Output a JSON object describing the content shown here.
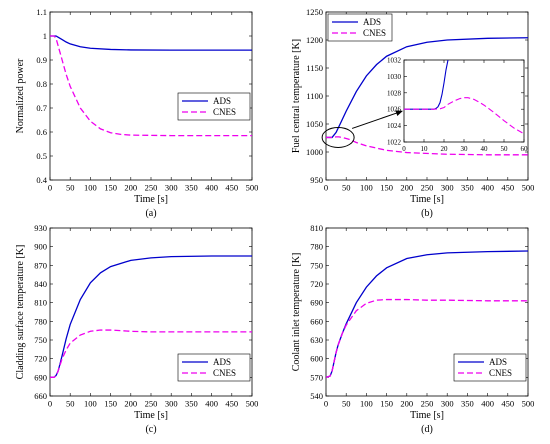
{
  "colors": {
    "ads": "#0000cc",
    "cnes": "#ee00ee"
  },
  "chart_data": [
    {
      "type": "line",
      "caption": "(a)",
      "xlabel": "Time [s]",
      "ylabel": "Normalized power",
      "xlim": [
        0,
        500
      ],
      "ylim": [
        0.4,
        1.1
      ],
      "xticks": [
        0,
        50,
        100,
        150,
        200,
        250,
        300,
        350,
        400,
        450,
        500
      ],
      "yticks": [
        0.4,
        0.5,
        0.6,
        0.7,
        0.8,
        0.9,
        1,
        1.1
      ],
      "ytick_labels": [
        "0.4",
        "0.5",
        "0.6",
        "0.7",
        "0.8",
        "0.9",
        "1",
        "1.1"
      ],
      "legend_position": "middle-right",
      "series": [
        {
          "name": "ADS",
          "style": "solid",
          "x": [
            0,
            10,
            15,
            20,
            30,
            40,
            50,
            75,
            100,
            150,
            200,
            300,
            400,
            500
          ],
          "y": [
            1.0,
            1.0,
            1.0,
            0.995,
            0.985,
            0.975,
            0.967,
            0.955,
            0.949,
            0.944,
            0.942,
            0.941,
            0.941,
            0.941
          ]
        },
        {
          "name": "CNES",
          "style": "dashed",
          "x": [
            0,
            10,
            15,
            20,
            30,
            40,
            50,
            75,
            100,
            125,
            150,
            175,
            200,
            250,
            300,
            400,
            500
          ],
          "y": [
            1.0,
            1.0,
            0.99,
            0.96,
            0.9,
            0.84,
            0.79,
            0.7,
            0.645,
            0.613,
            0.597,
            0.59,
            0.587,
            0.586,
            0.585,
            0.585,
            0.585
          ]
        }
      ]
    },
    {
      "type": "line",
      "caption": "(b)",
      "xlabel": "Time [s]",
      "ylabel": "Fuel central temperature [K]",
      "xlim": [
        0,
        500
      ],
      "ylim": [
        950,
        1250
      ],
      "xticks": [
        0,
        50,
        100,
        150,
        200,
        250,
        300,
        350,
        400,
        450,
        500
      ],
      "yticks": [
        950,
        1000,
        1050,
        1100,
        1150,
        1200,
        1250
      ],
      "ytick_labels": [
        "950",
        "1000",
        "1050",
        "1100",
        "1150",
        "1200",
        "1250"
      ],
      "legend_position": "top-left",
      "series": [
        {
          "name": "ADS",
          "style": "solid",
          "x": [
            0,
            15,
            25,
            35,
            50,
            75,
            100,
            125,
            150,
            200,
            250,
            300,
            400,
            500
          ],
          "y": [
            1026,
            1026,
            1035,
            1050,
            1073,
            1108,
            1136,
            1156,
            1171,
            1188,
            1196,
            1200,
            1203,
            1204
          ]
        },
        {
          "name": "CNES",
          "style": "dashed",
          "x": [
            0,
            15,
            25,
            32,
            40,
            50,
            60,
            75,
            100,
            150,
            200,
            300,
            400,
            500
          ],
          "y": [
            1026,
            1026,
            1027,
            1027,
            1026,
            1024,
            1022,
            1017,
            1011,
            1003,
            999,
            996,
            995,
            995
          ]
        }
      ],
      "inset": {
        "xlim": [
          0,
          60
        ],
        "ylim": [
          1022,
          1032
        ],
        "xticks": [
          0,
          10,
          20,
          30,
          40,
          50,
          60
        ],
        "yticks": [
          1022,
          1024,
          1026,
          1028,
          1030,
          1032
        ],
        "ytick_labels": [
          "1022",
          "1024",
          "1026",
          "1028",
          "1030",
          "1032"
        ],
        "series": [
          {
            "name": "ADS",
            "style": "solid",
            "x": [
              0,
              15,
              16,
              17,
              18,
              19,
              20,
              21,
              22
            ],
            "y": [
              1026,
              1026,
              1026.1,
              1026.3,
              1026.8,
              1027.8,
              1029.2,
              1030.8,
              1032
            ]
          },
          {
            "name": "CNES",
            "style": "dashed",
            "x": [
              0,
              15,
              18,
              20,
              22,
              25,
              28,
              30,
              32,
              35,
              38,
              40,
              45,
              50,
              55,
              60
            ],
            "y": [
              1026,
              1026,
              1026.05,
              1026.2,
              1026.6,
              1027.0,
              1027.3,
              1027.4,
              1027.4,
              1027.2,
              1026.8,
              1026.5,
              1025.6,
              1024.6,
              1023.7,
              1023.0
            ]
          }
        ]
      }
    },
    {
      "type": "line",
      "caption": "(c)",
      "xlabel": "Time [s]",
      "ylabel": "Cladding surface temperature [K]",
      "xlim": [
        0,
        500
      ],
      "ylim": [
        660,
        930
      ],
      "xticks": [
        0,
        50,
        100,
        150,
        200,
        250,
        300,
        350,
        400,
        450,
        500
      ],
      "yticks": [
        660,
        690,
        720,
        750,
        780,
        810,
        840,
        870,
        900,
        930
      ],
      "ytick_labels": [
        "660",
        "690",
        "720",
        "750",
        "780",
        "810",
        "840",
        "870",
        "900",
        "930"
      ],
      "legend_position": "bottom-right",
      "series": [
        {
          "name": "ADS",
          "style": "solid",
          "x": [
            0,
            10,
            15,
            20,
            25,
            30,
            40,
            50,
            75,
            100,
            125,
            150,
            200,
            250,
            300,
            400,
            500
          ],
          "y": [
            690,
            690,
            693,
            700,
            712,
            725,
            752,
            775,
            815,
            842,
            858,
            868,
            878,
            882,
            884,
            885,
            885
          ]
        },
        {
          "name": "CNES",
          "style": "dashed",
          "x": [
            0,
            10,
            15,
            20,
            25,
            30,
            40,
            50,
            75,
            100,
            125,
            150,
            175,
            200,
            250,
            300,
            400,
            500
          ],
          "y": [
            690,
            690,
            693,
            700,
            710,
            720,
            734,
            745,
            758,
            764,
            766,
            766,
            765,
            764,
            763,
            763,
            763,
            763
          ]
        }
      ]
    },
    {
      "type": "line",
      "caption": "(d)",
      "xlabel": "Time [s]",
      "ylabel": "Coolant inlet temperature [K]",
      "xlim": [
        0,
        500
      ],
      "ylim": [
        540,
        810
      ],
      "xticks": [
        0,
        50,
        100,
        150,
        200,
        250,
        300,
        350,
        400,
        450,
        500
      ],
      "yticks": [
        540,
        570,
        600,
        630,
        660,
        690,
        720,
        750,
        780,
        810
      ],
      "ytick_labels": [
        "540",
        "570",
        "600",
        "630",
        "660",
        "690",
        "720",
        "750",
        "780",
        "810"
      ],
      "legend_position": "bottom-right",
      "series": [
        {
          "name": "ADS",
          "style": "solid",
          "x": [
            0,
            10,
            15,
            20,
            25,
            30,
            40,
            50,
            75,
            100,
            125,
            150,
            200,
            250,
            300,
            400,
            500
          ],
          "y": [
            570,
            572,
            580,
            595,
            610,
            622,
            640,
            656,
            690,
            715,
            733,
            746,
            761,
            767,
            770,
            772,
            773
          ]
        },
        {
          "name": "CNES",
          "style": "dashed",
          "x": [
            0,
            10,
            15,
            20,
            25,
            30,
            40,
            50,
            75,
            100,
            125,
            150,
            175,
            200,
            250,
            300,
            400,
            500
          ],
          "y": [
            570,
            572,
            580,
            595,
            610,
            622,
            640,
            654,
            677,
            689,
            694,
            695,
            695,
            695,
            694,
            694,
            693,
            693
          ]
        }
      ]
    }
  ]
}
